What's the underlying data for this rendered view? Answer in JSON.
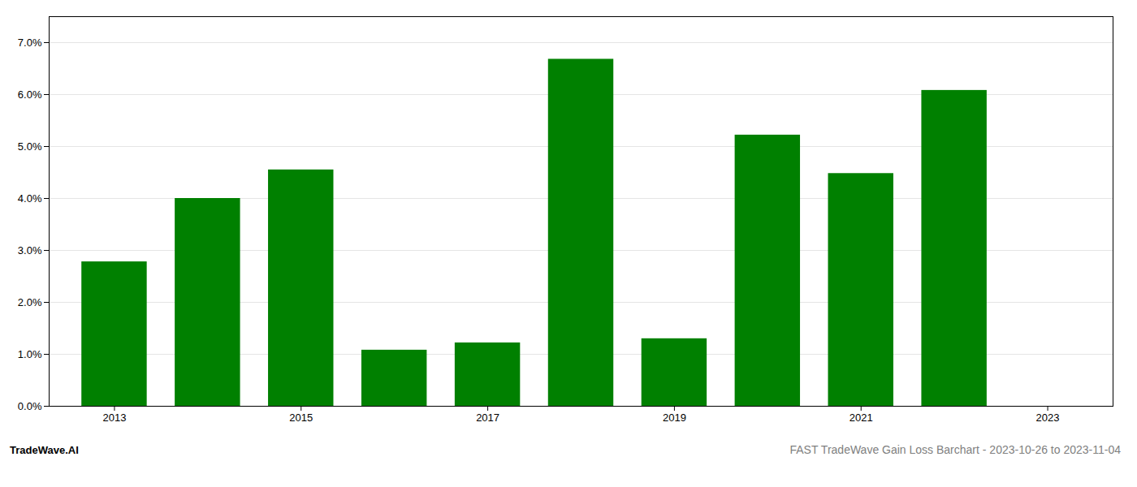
{
  "chart_data": {
    "type": "bar",
    "title": "FAST TradeWave Gain Loss Barchart - 2023-10-26 to 2023-11-04",
    "annotations": [
      "TradeWave.AI"
    ],
    "x": [
      2013,
      2014,
      2015,
      2016,
      2017,
      2018,
      2019,
      2020,
      2021,
      2022
    ],
    "values": [
      0.0278,
      0.04,
      0.0455,
      0.0108,
      0.0122,
      0.0668,
      0.013,
      0.0522,
      0.0448,
      0.0608
    ],
    "color": "#008000",
    "xlim": [
      2012.3,
      2023.7
    ],
    "xticks": [
      2013,
      2015,
      2017,
      2019,
      2021,
      2023
    ],
    "ylim": [
      0,
      0.075
    ],
    "yticks": [
      {
        "value": 0.0,
        "label": "0.0%"
      },
      {
        "value": 0.01,
        "label": "1.0%"
      },
      {
        "value": 0.02,
        "label": "2.0%"
      },
      {
        "value": 0.03,
        "label": "3.0%"
      },
      {
        "value": 0.04,
        "label": "4.0%"
      },
      {
        "value": 0.05,
        "label": "5.0%"
      },
      {
        "value": 0.06,
        "label": "6.0%"
      },
      {
        "value": 0.07,
        "label": "7.0%"
      }
    ],
    "grid": true
  }
}
